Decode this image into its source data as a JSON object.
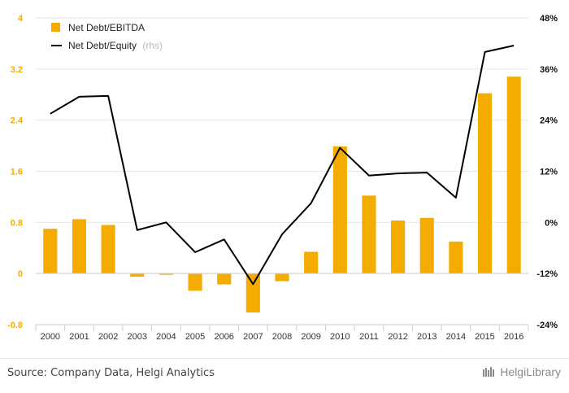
{
  "chart_data": {
    "type": "bar",
    "categories": [
      "2000",
      "2001",
      "2002",
      "2003",
      "2004",
      "2005",
      "2006",
      "2007",
      "2008",
      "2009",
      "2010",
      "2011",
      "2012",
      "2013",
      "2014",
      "2015",
      "2016"
    ],
    "series": [
      {
        "name": "Net Debt/EBITDA",
        "type": "bar",
        "axis": "left",
        "values": [
          0.7,
          0.85,
          0.76,
          -0.05,
          -0.02,
          -0.27,
          -0.17,
          -0.61,
          -0.12,
          0.34,
          1.99,
          1.22,
          0.83,
          0.87,
          0.5,
          2.82,
          3.08
        ]
      },
      {
        "name": "Net Debt/Equity",
        "type": "line",
        "axis": "right",
        "unit": "%",
        "values": [
          25.5,
          29.5,
          29.7,
          -1.8,
          0.0,
          -7.0,
          -4.0,
          -14.5,
          -2.8,
          4.5,
          17.5,
          11.0,
          11.5,
          11.7,
          5.8,
          40.0,
          41.5
        ]
      }
    ],
    "y_left": {
      "ticks": [
        "-0.8",
        "0",
        "0.8",
        "1.6",
        "2.4",
        "3.2",
        "4"
      ],
      "ylim": [
        -0.8,
        4
      ]
    },
    "y_right": {
      "ticks": [
        "-24%",
        "-12%",
        "0%",
        "12%",
        "24%",
        "36%",
        "48%"
      ],
      "ylim": [
        -24,
        48
      ]
    },
    "legend": {
      "placement": "top-left",
      "rhs_note": "(rhs)"
    },
    "colors": {
      "bar": "#f5ac00",
      "line": "#000000",
      "left_axis_text": "#f5ac00",
      "grid": "#e6e6e6"
    },
    "grid": true
  },
  "footer": {
    "source": "Source: Company Data, Helgi Analytics",
    "logo_text": "HelgiLibrary"
  }
}
